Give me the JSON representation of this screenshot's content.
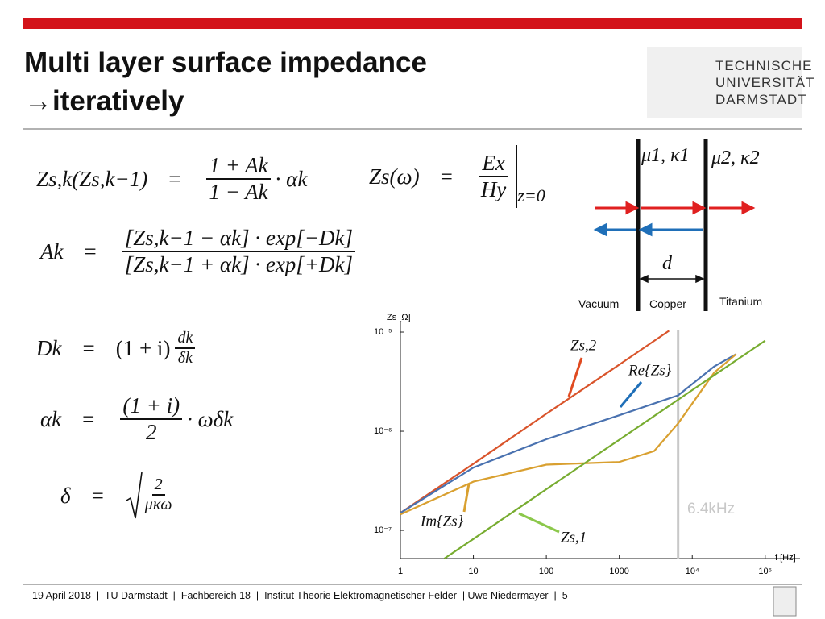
{
  "header": {
    "title_lines": [
      "Multi layer surface impedance",
      "→iteratively"
    ]
  },
  "logo": {
    "lines": [
      "TECHNISCHE",
      "UNIVERSITÄT",
      "DARMSTADT"
    ]
  },
  "relation": "=",
  "equations": [
    {
      "lhs": "Zs,k(Zs,k−1)",
      "num": "1 + Ak",
      "den": "1 − Ak",
      "post": "· αk"
    },
    {
      "lhs": "Ak",
      "num": "[Zs,k−1 − αk] · exp[−Dk]",
      "den": "[Zs,k−1 + αk] · exp[+Dk]"
    },
    {
      "lhs": "Dk",
      "pre": "(1 + i)",
      "num": "dk",
      "den": "δk"
    },
    {
      "lhs": "αk",
      "num": "(1 + i)",
      "den": "2",
      "post": "· ωδk"
    },
    {
      "lhs": "δ",
      "num": "2",
      "den": "μκω",
      "sqrt": true
    },
    {
      "lhs": "Zs(ω)",
      "num": "Ex",
      "den": "Hy",
      "eval": "z=0"
    }
  ],
  "diagram": {
    "layer1": "μ1, κ1",
    "layer2": "μ2, κ2",
    "thickness": "d",
    "regions": [
      "Vacuum",
      "Copper",
      "Titanium"
    ]
  },
  "chart_data": {
    "type": "line",
    "y_label": "Zs [Ω]",
    "x_label": "f [Hz]",
    "xscale": "log",
    "yscale": "log",
    "xlim": [
      1,
      300000
    ],
    "ylim": [
      5.2e-08,
      1.3e-05
    ],
    "xticks": [
      1,
      10,
      100,
      1000,
      {
        "value": 10000,
        "label": "10⁴"
      },
      {
        "value": 100000,
        "label": "10⁵"
      }
    ],
    "yticks": [
      {
        "value": 1e-05,
        "label": "10⁻⁵"
      },
      {
        "value": 1e-06,
        "label": "10⁻⁶"
      },
      {
        "value": 1e-07,
        "label": "10⁻⁷"
      }
    ],
    "series": [
      {
        "name": "Zs,2",
        "color": "#d9542b",
        "x": [
          1,
          10,
          100,
          1000,
          4800
        ],
        "values": [
          1.5e-07,
          4.7e-07,
          1.5e-06,
          4.7e-06,
          1.03e-05
        ]
      },
      {
        "name": "Re{Zs}",
        "color": "#4a72b0",
        "x": [
          1,
          10,
          100,
          1000,
          6400,
          20000,
          40000
        ],
        "values": [
          1.5e-07,
          4.3e-07,
          8.3e-07,
          1.45e-06,
          2.3e-06,
          4.5e-06,
          6e-06
        ]
      },
      {
        "name": "Im{Zs}",
        "color": "#d9a030",
        "x": [
          1,
          10,
          100,
          1000,
          3000,
          6400,
          10000,
          20000,
          40000
        ],
        "values": [
          1.45e-07,
          3.1e-07,
          4.6e-07,
          4.9e-07,
          6.3e-07,
          1.2e-06,
          1.9e-06,
          3.9e-06,
          6e-06
        ]
      },
      {
        "name": "Zs,1",
        "color": "#77ac30",
        "x": [
          4,
          10,
          100,
          1000,
          10000,
          100000
        ],
        "values": [
          5.2e-08,
          8.2e-08,
          2.6e-07,
          8.2e-07,
          2.6e-06,
          8.2e-06
        ]
      }
    ],
    "marker_line": {
      "x": 6400,
      "label": "6.4kHz",
      "color": "#c8c8c8"
    }
  },
  "footer": {
    "text": "19 April 2018  |  TU Darmstadt  |  Fachbereich 18  |  Institut Theorie Elektromagnetischer Felder  | Uwe Niedermayer  |  5"
  }
}
